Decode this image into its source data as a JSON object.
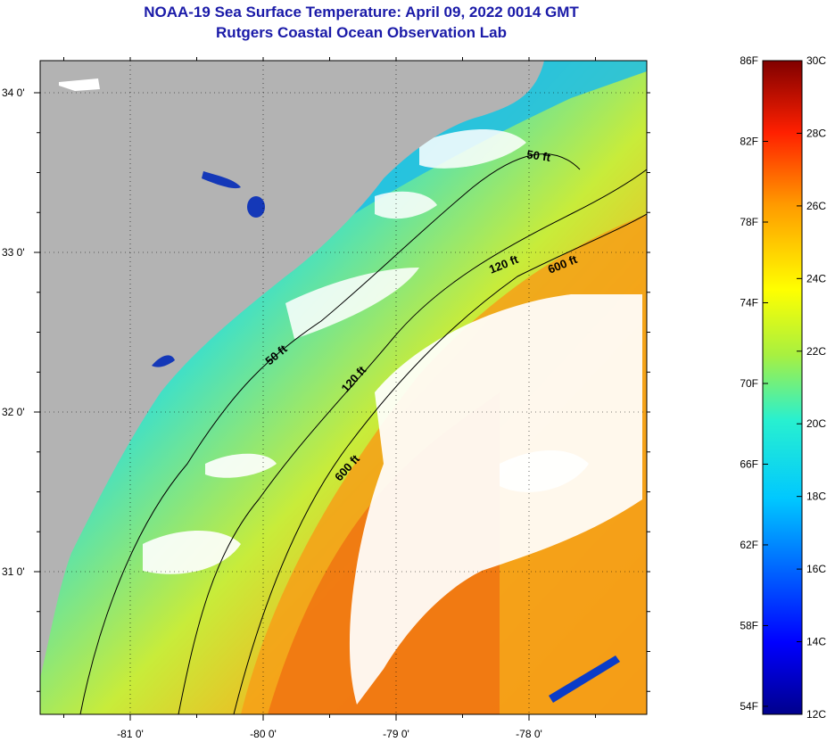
{
  "title": "NOAA-19 Sea Surface Temperature:  April 09, 2022 0014 GMT",
  "subtitle": "Rutgers Coastal Ocean Observation Lab",
  "colors": {
    "land": "#b3b3b3",
    "cloud": "#ffffff",
    "title": "#1a1aa8",
    "contour": "#000000"
  },
  "map": {
    "lon_ticks": [
      {
        "value": -81,
        "label": "-81 0'"
      },
      {
        "value": -80,
        "label": "-80 0'"
      },
      {
        "value": -79,
        "label": "-79 0'"
      },
      {
        "value": -78,
        "label": "-78 0'"
      }
    ],
    "lat_ticks": [
      {
        "value": 34,
        "label": "34 0'"
      },
      {
        "value": 33,
        "label": "33 0'"
      },
      {
        "value": 32,
        "label": "32 0'"
      },
      {
        "value": 31,
        "label": "31 0'"
      }
    ],
    "depth_contours": [
      {
        "depth": "50 ft",
        "labels": [
          "50 ft",
          "50 ft"
        ]
      },
      {
        "depth": "120 ft",
        "labels": [
          "120 ft",
          "120 ft"
        ]
      },
      {
        "depth": "600 ft",
        "labels": [
          "600 ft",
          "600 ft"
        ]
      }
    ]
  },
  "colorbar": {
    "min_c": 12,
    "max_c": 30,
    "fahrenheit_labels": [
      "86F",
      "82F",
      "78F",
      "74F",
      "70F",
      "66F",
      "62F",
      "58F",
      "54F"
    ],
    "celsius_labels": [
      "30C",
      "28C",
      "26C",
      "24C",
      "22C",
      "20C",
      "18C",
      "16C",
      "14C",
      "12C"
    ]
  }
}
